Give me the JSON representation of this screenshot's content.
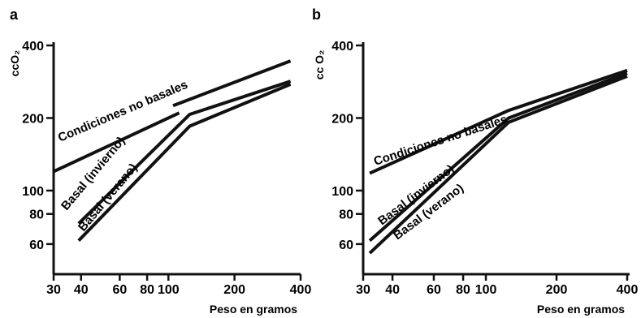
{
  "chart_data": [
    {
      "type": "line",
      "panel_label": "a",
      "xlabel": "Peso en gramos",
      "ylabel": "ccO₂",
      "x_scale": "log",
      "y_scale": "log",
      "xlim": [
        30,
        400
      ],
      "ylim": [
        45,
        400
      ],
      "x_ticks": [
        30,
        40,
        60,
        80,
        100,
        200,
        400
      ],
      "x_tick_labels": [
        "30",
        "40",
        "60",
        "80",
        "100",
        "200",
        "400"
      ],
      "y_ticks": [
        60,
        80,
        100,
        200,
        400
      ],
      "y_tick_labels": [
        "60",
        "80",
        "100",
        "200",
        "400"
      ],
      "grid": false,
      "series": [
        {
          "name": "Condiciones no basales",
          "segments": [
            {
              "x": [
                30,
                112
              ],
              "y": [
                120,
                210
              ]
            },
            {
              "x": [
                105,
                360
              ],
              "y": [
                225,
                345
              ]
            }
          ]
        },
        {
          "name": "Basal (invierno)",
          "x": [
            39,
            125,
            360
          ],
          "y": [
            73,
            207,
            284
          ]
        },
        {
          "name": "Basal (verano)",
          "x": [
            39,
            125,
            360
          ],
          "y": [
            62,
            185,
            276
          ]
        }
      ]
    },
    {
      "type": "line",
      "panel_label": "b",
      "xlabel": "Peso en gramos",
      "ylabel": "cc O₂",
      "x_scale": "log",
      "y_scale": "log",
      "xlim": [
        30,
        400
      ],
      "ylim": [
        45,
        400
      ],
      "x_ticks": [
        30,
        40,
        60,
        80,
        100,
        200,
        400
      ],
      "x_tick_labels": [
        "30",
        "40",
        "60",
        "80",
        "100",
        "200",
        "400"
      ],
      "y_ticks": [
        60,
        80,
        100,
        200,
        400
      ],
      "y_tick_labels": [
        "60",
        "80",
        "100",
        "200",
        "400"
      ],
      "grid": false,
      "series": [
        {
          "name": "Condiciones no basales",
          "x": [
            32,
            125,
            400
          ],
          "y": [
            118,
            215,
            315
          ]
        },
        {
          "name": "Basal (invierno)",
          "x": [
            32,
            125,
            400
          ],
          "y": [
            62,
            200,
            307
          ]
        },
        {
          "name": "Basal (verano)",
          "x": [
            32,
            125,
            400
          ],
          "y": [
            55,
            192,
            298
          ]
        }
      ]
    }
  ]
}
